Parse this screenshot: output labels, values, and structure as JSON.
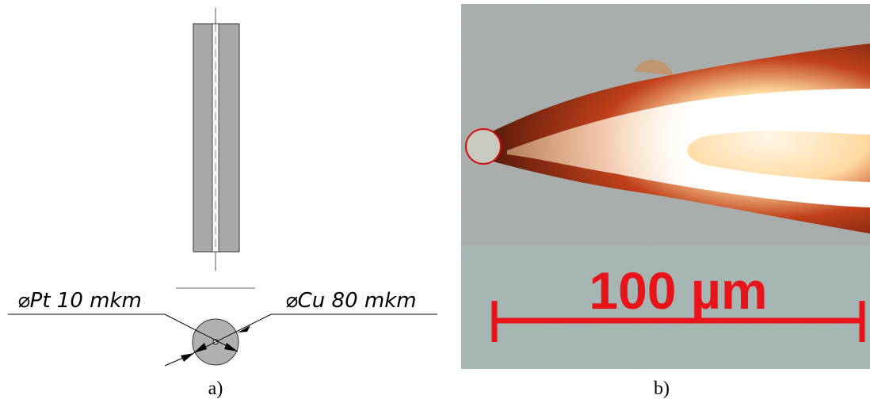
{
  "drawing": {
    "label_left": "⌀Pt 10 mkm",
    "label_right": "⌀Cu 80 mkm",
    "caption": "a)"
  },
  "photo": {
    "scale_label": "100 µm",
    "caption": "b)"
  }
}
